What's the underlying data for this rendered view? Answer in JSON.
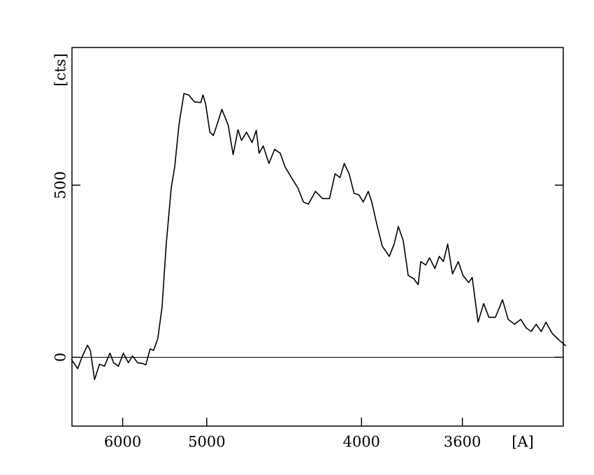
{
  "chart_data": {
    "type": "line",
    "xscale": "inverse-square",
    "x_label": "[A]",
    "y_label": "[cts]",
    "xlim": [
      7000,
      3300
    ],
    "ylim": [
      -200,
      900
    ],
    "xticks": [
      6000,
      5000,
      4000,
      3600
    ],
    "yticks": [
      0,
      500
    ],
    "reference_line": 0,
    "series": [
      {
        "color": "#000000",
        "x": [
          7015,
          6862,
          6765,
          6642,
          6582,
          6497,
          6400,
          6309,
          6209,
          6149,
          6067,
          5989,
          5913,
          5851,
          5780,
          5713,
          5666,
          5611,
          5566,
          5514,
          5463,
          5414,
          5358,
          5319,
          5273,
          5221,
          5172,
          5116,
          5055,
          5035,
          5010,
          4972,
          4941,
          4910,
          4868,
          4816,
          4776,
          4738,
          4711,
          4674,
          4633,
          4603,
          4583,
          4554,
          4516,
          4478,
          4442,
          4411,
          4372,
          4334,
          4301,
          4273,
          4233,
          4195,
          4158,
          4129,
          4104,
          4083,
          4059,
          4035,
          4012,
          3992,
          3969,
          3953,
          3932,
          3907,
          3877,
          3856,
          3839,
          3819,
          3799,
          3777,
          3760,
          3750,
          3731,
          3717,
          3697,
          3681,
          3666,
          3651,
          3634,
          3614,
          3598,
          3579,
          3567,
          3548,
          3530,
          3513,
          3493,
          3471,
          3454,
          3435,
          3417,
          3401,
          3387,
          3373,
          3359,
          3346,
          3329,
          3310,
          3293
        ],
        "values": [
          -6,
          -33,
          0,
          35,
          20,
          -65,
          -20,
          -26,
          12,
          -16,
          -26,
          12,
          -16,
          4,
          -16,
          -18,
          -22,
          24,
          20,
          55,
          146,
          329,
          492,
          553,
          675,
          766,
          762,
          742,
          740,
          762,
          736,
          654,
          644,
          675,
          720,
          675,
          589,
          661,
          630,
          654,
          624,
          659,
          593,
          614,
          563,
          604,
          593,
          553,
          522,
          492,
          451,
          445,
          482,
          461,
          461,
          533,
          522,
          563,
          533,
          476,
          472,
          451,
          482,
          451,
          390,
          323,
          293,
          329,
          380,
          339,
          238,
          228,
          211,
          278,
          268,
          289,
          258,
          293,
          278,
          329,
          242,
          278,
          238,
          217,
          232,
          102,
          156,
          116,
          116,
          167,
          110,
          96,
          110,
          85,
          75,
          96,
          75,
          102,
          69,
          49,
          33
        ]
      }
    ]
  }
}
